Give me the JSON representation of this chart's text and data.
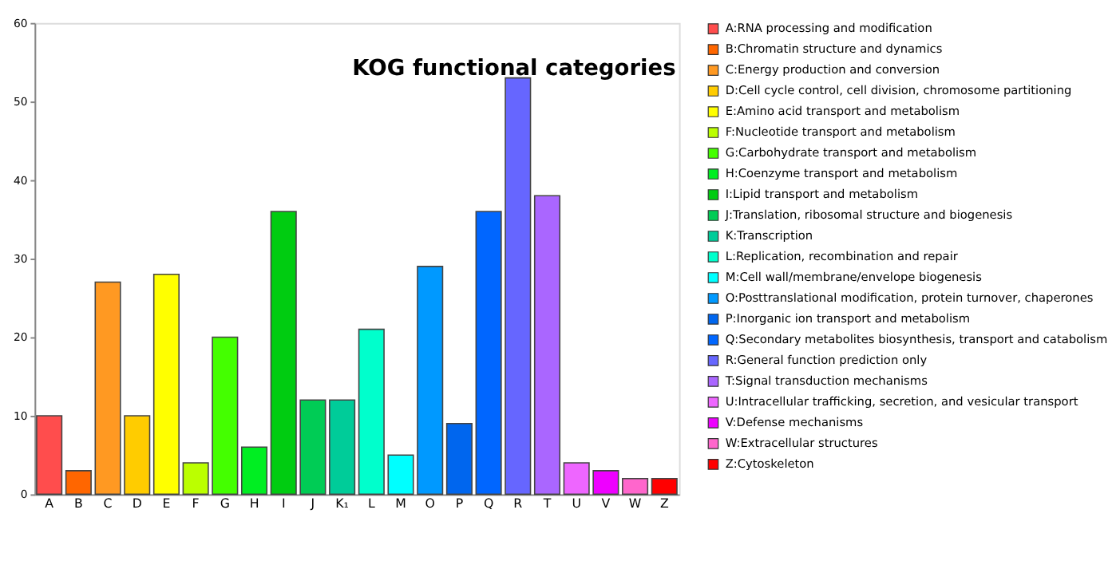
{
  "chart_data": {
    "type": "bar",
    "title": "KOG functional categories",
    "categories": [
      "A",
      "B",
      "C",
      "D",
      "E",
      "F",
      "G",
      "H",
      "I",
      "J",
      "K₁",
      "L",
      "M",
      "O",
      "P",
      "Q",
      "R",
      "T",
      "U",
      "V",
      "W",
      "Z"
    ],
    "series": [
      {
        "name": "A:RNA processing and modification",
        "color": "#ff4d4d",
        "values": [
          10,
          null,
          null,
          null,
          null,
          null,
          null,
          null,
          null,
          null,
          null,
          null,
          null,
          null,
          null,
          null,
          null,
          null,
          null,
          null,
          null,
          null
        ]
      },
      {
        "name": "B:Chromatin structure and dynamics",
        "color": "#ff6600",
        "values": [
          null,
          3,
          null,
          null,
          null,
          null,
          null,
          null,
          null,
          null,
          null,
          null,
          null,
          null,
          null,
          null,
          null,
          null,
          null,
          null,
          null,
          null
        ]
      },
      {
        "name": "C:Energy production and conversion",
        "color": "#ff9922",
        "values": [
          null,
          null,
          27,
          null,
          null,
          null,
          null,
          null,
          null,
          null,
          null,
          null,
          null,
          null,
          null,
          null,
          null,
          null,
          null,
          null,
          null,
          null
        ]
      },
      {
        "name": "D:Cell cycle control, cell division, chromosome partitioning",
        "color": "#ffcc00",
        "values": [
          null,
          null,
          null,
          10,
          null,
          null,
          null,
          null,
          null,
          null,
          null,
          null,
          null,
          null,
          null,
          null,
          null,
          null,
          null,
          null,
          null,
          null
        ]
      },
      {
        "name": "E:Amino acid transport and metabolism",
        "color": "#ffff00",
        "values": [
          null,
          null,
          null,
          null,
          28,
          null,
          null,
          null,
          null,
          null,
          null,
          null,
          null,
          null,
          null,
          null,
          null,
          null,
          null,
          null,
          null,
          null
        ]
      },
      {
        "name": "F:Nucleotide transport and metabolism",
        "color": "#bbff00",
        "values": [
          null,
          null,
          null,
          null,
          null,
          4,
          null,
          null,
          null,
          null,
          null,
          null,
          null,
          null,
          null,
          null,
          null,
          null,
          null,
          null,
          null,
          null
        ]
      },
      {
        "name": "G:Carbohydrate transport and metabolism",
        "color": "#44ff00",
        "values": [
          null,
          null,
          null,
          null,
          null,
          null,
          20,
          null,
          null,
          null,
          null,
          null,
          null,
          null,
          null,
          null,
          null,
          null,
          null,
          null,
          null,
          null
        ]
      },
      {
        "name": "H:Coenzyme transport and metabolism",
        "color": "#00ee22",
        "values": [
          null,
          null,
          null,
          null,
          null,
          null,
          null,
          6,
          null,
          null,
          null,
          null,
          null,
          null,
          null,
          null,
          null,
          null,
          null,
          null,
          null,
          null
        ]
      },
      {
        "name": "I:Lipid transport and metabolism",
        "color": "#00cc11",
        "values": [
          null,
          null,
          null,
          null,
          null,
          null,
          null,
          null,
          36,
          null,
          null,
          null,
          null,
          null,
          null,
          null,
          null,
          null,
          null,
          null,
          null,
          null
        ]
      },
      {
        "name": "J:Translation, ribosomal structure and biogenesis",
        "color": "#00cc55",
        "values": [
          null,
          null,
          null,
          null,
          null,
          null,
          null,
          null,
          null,
          12,
          null,
          null,
          null,
          null,
          null,
          null,
          null,
          null,
          null,
          null,
          null,
          null
        ]
      },
      {
        "name": "K:Transcription",
        "color": "#00cc99",
        "values": [
          null,
          null,
          null,
          null,
          null,
          null,
          null,
          null,
          null,
          null,
          12,
          null,
          null,
          null,
          null,
          null,
          null,
          null,
          null,
          null,
          null,
          null
        ]
      },
      {
        "name": "L:Replication, recombination and repair",
        "color": "#00ffcc",
        "values": [
          null,
          null,
          null,
          null,
          null,
          null,
          null,
          null,
          null,
          null,
          null,
          21,
          null,
          null,
          null,
          null,
          null,
          null,
          null,
          null,
          null,
          null
        ]
      },
      {
        "name": "M:Cell wall/membrane/envelope biogenesis",
        "color": "#00ffff",
        "values": [
          null,
          null,
          null,
          null,
          null,
          null,
          null,
          null,
          null,
          null,
          null,
          null,
          5,
          null,
          null,
          null,
          null,
          null,
          null,
          null,
          null,
          null
        ]
      },
      {
        "name": "O:Posttranslational modification, protein turnover, chaperones",
        "color": "#0099ff",
        "values": [
          null,
          null,
          null,
          null,
          null,
          null,
          null,
          null,
          null,
          null,
          null,
          null,
          null,
          29,
          null,
          null,
          null,
          null,
          null,
          null,
          null,
          null
        ]
      },
      {
        "name": "P:Inorganic ion transport and metabolism",
        "color": "#0066ee",
        "values": [
          null,
          null,
          null,
          null,
          null,
          null,
          null,
          null,
          null,
          null,
          null,
          null,
          null,
          null,
          9,
          null,
          null,
          null,
          null,
          null,
          null,
          null
        ]
      },
      {
        "name": "Q:Secondary metabolites biosynthesis, transport and catabolism",
        "color": "#0066ff",
        "values": [
          null,
          null,
          null,
          null,
          null,
          null,
          null,
          null,
          null,
          null,
          null,
          null,
          null,
          null,
          null,
          36,
          null,
          null,
          null,
          null,
          null,
          null
        ]
      },
      {
        "name": "R:General function prediction only",
        "color": "#6666ff",
        "values": [
          null,
          null,
          null,
          null,
          null,
          null,
          null,
          null,
          null,
          null,
          null,
          null,
          null,
          null,
          null,
          null,
          53,
          null,
          null,
          null,
          null,
          null
        ]
      },
      {
        "name": "T:Signal transduction mechanisms",
        "color": "#aa66ff",
        "values": [
          null,
          null,
          null,
          null,
          null,
          null,
          null,
          null,
          null,
          null,
          null,
          null,
          null,
          null,
          null,
          null,
          null,
          38,
          null,
          null,
          null,
          null
        ]
      },
      {
        "name": "U:Intracellular trafficking, secretion, and vesicular transport",
        "color": "#ee66ff",
        "values": [
          null,
          null,
          null,
          null,
          null,
          null,
          null,
          null,
          null,
          null,
          null,
          null,
          null,
          null,
          null,
          null,
          null,
          null,
          4,
          null,
          null,
          null
        ]
      },
      {
        "name": "V:Defense mechanisms",
        "color": "#ee00ff",
        "values": [
          null,
          null,
          null,
          null,
          null,
          null,
          null,
          null,
          null,
          null,
          null,
          null,
          null,
          null,
          null,
          null,
          null,
          null,
          null,
          3,
          null,
          null
        ]
      },
      {
        "name": "W:Extracellular structures",
        "color": "#ff66cc",
        "values": [
          null,
          null,
          null,
          null,
          null,
          null,
          null,
          null,
          null,
          null,
          null,
          null,
          null,
          null,
          null,
          null,
          null,
          null,
          null,
          null,
          2,
          null
        ]
      },
      {
        "name": "Z:Cytoskeleton",
        "color": "#ff0000",
        "values": [
          null,
          null,
          null,
          null,
          null,
          null,
          null,
          null,
          null,
          null,
          null,
          null,
          null,
          null,
          null,
          null,
          null,
          null,
          null,
          null,
          null,
          2
        ]
      }
    ],
    "ylim": [
      0,
      60
    ],
    "yticks": [
      0,
      10,
      20,
      30,
      40,
      50,
      60
    ],
    "grid": false,
    "legend": "right"
  }
}
